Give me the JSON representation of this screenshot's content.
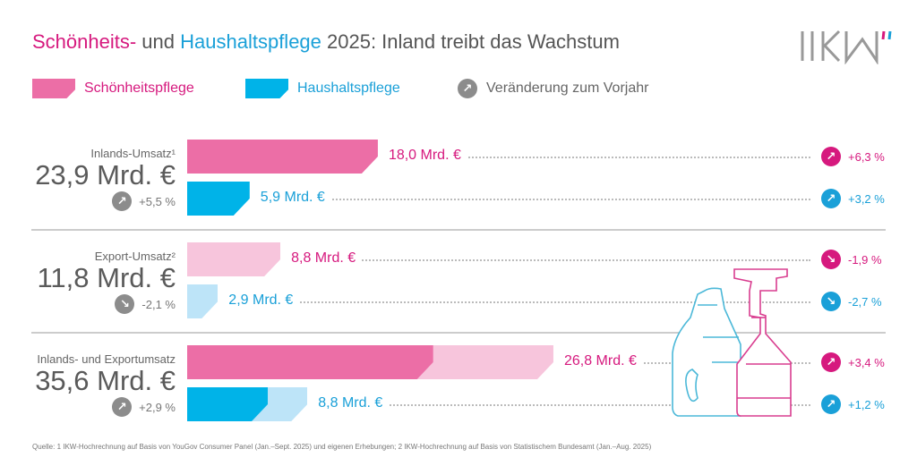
{
  "title": {
    "part1": "Schönheits-",
    "part2": " und ",
    "part3": "Haushaltspflege",
    "part4": " 2025: Inland treibt das Wachstum"
  },
  "logo": "IKW",
  "legend": {
    "beauty": "Schönheitspflege",
    "household": "Haushaltspflege",
    "change": "Veränderung zum Vorjahr"
  },
  "colors": {
    "beauty": "#ec6ea6",
    "beauty_light": "#f7c5dc",
    "household": "#00b3e8",
    "household_light": "#bde4f8",
    "beauty_text": "#d6197e",
    "household_text": "#1aa0d8",
    "neutral_badge": "#8c8c8c"
  },
  "rows": [
    {
      "label": "Inlands-Umsatz¹",
      "total": "23,9 Mrd. €",
      "change": "+5,5 %",
      "direction": "up",
      "beauty_label": "18,0 Mrd. €",
      "household_label": "5,9 Mrd. €",
      "beauty_change": "+6,3 %",
      "beauty_dir": "up",
      "household_change": "+3,2 %",
      "household_dir": "up"
    },
    {
      "label": "Export-Umsatz²",
      "total": "11,8 Mrd. €",
      "change": "-2,1 %",
      "direction": "down",
      "beauty_label": "8,8 Mrd. €",
      "household_label": "2,9 Mrd. €",
      "beauty_change": "-1,9 %",
      "beauty_dir": "down",
      "household_change": "-2,7 %",
      "household_dir": "down"
    },
    {
      "label": "Inlands- und Exportumsatz",
      "total": "35,6 Mrd. €",
      "change": "+2,9 %",
      "direction": "up",
      "beauty_label": "26,8 Mrd. €",
      "household_label": "8,8 Mrd. €",
      "beauty_change": "+3,4 %",
      "beauty_dir": "up",
      "household_change": "+1,2 %",
      "household_dir": "up"
    }
  ],
  "chart_data": {
    "type": "bar",
    "orientation": "horizontal",
    "unit": "Mrd. €",
    "categories": [
      "Inlands-Umsatz",
      "Export-Umsatz",
      "Inlands- und Exportumsatz"
    ],
    "series": [
      {
        "name": "Schönheitspflege",
        "values": [
          18.0,
          8.8,
          26.8
        ],
        "change_pct": [
          6.3,
          -1.9,
          3.4
        ],
        "stacked_segments_total": [
          18.0,
          8.8
        ]
      },
      {
        "name": "Haushaltspflege",
        "values": [
          5.9,
          2.9,
          8.8
        ],
        "change_pct": [
          3.2,
          -2.7,
          1.2
        ],
        "stacked_segments_total": [
          5.9,
          2.9
        ]
      }
    ],
    "totals": [
      23.9,
      11.8,
      35.6
    ],
    "total_change_pct": [
      5.5,
      -2.1,
      2.9
    ],
    "legend": "top"
  },
  "footer": "Quelle: 1 IKW-Hochrechnung auf Basis von YouGov Consumer Panel (Jan.–Sept. 2025) und eigenen Erhebungen; 2 IKW-Hochrechnung auf Basis von Statistischem Bundesamt (Jan.–Aug. 2025)"
}
